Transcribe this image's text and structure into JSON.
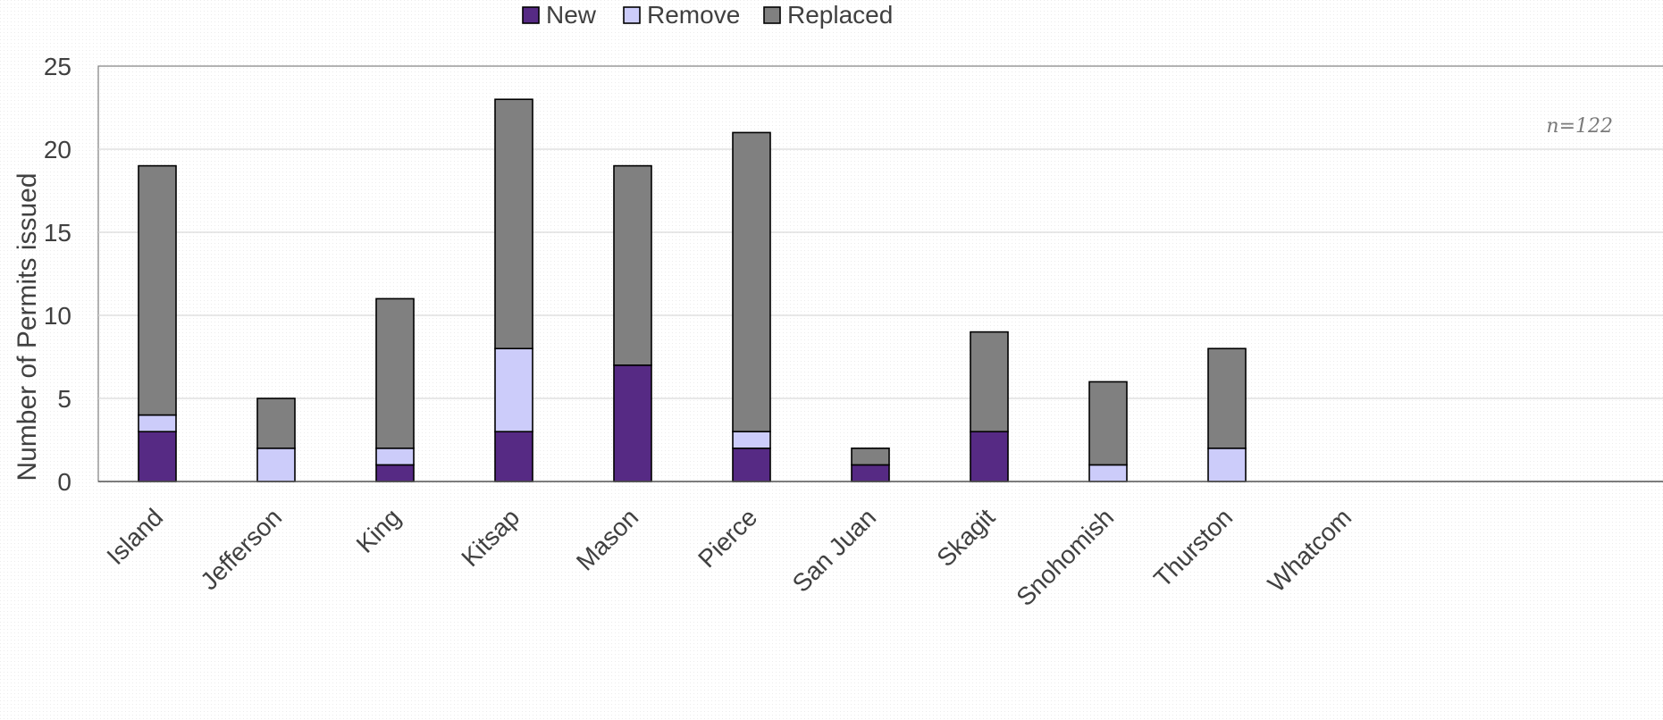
{
  "chart_data": {
    "type": "bar",
    "stacked": true,
    "categories": [
      "Island",
      "Jefferson",
      "King",
      "Kitsap",
      "Mason",
      "Pierce",
      "San Juan",
      "Skagit",
      "Snohomish",
      "Thurston",
      "Whatcom"
    ],
    "series": [
      {
        "name": "New",
        "color": "#562a84",
        "values": [
          3,
          0,
          1,
          3,
          7,
          2,
          1,
          3,
          0,
          0,
          0
        ]
      },
      {
        "name": "Remove",
        "color": "#ccccfa",
        "values": [
          1,
          2,
          1,
          5,
          0,
          1,
          0,
          0,
          1,
          2,
          0
        ]
      },
      {
        "name": "Replaced",
        "color": "#808080",
        "values": [
          15,
          3,
          9,
          15,
          12,
          18,
          1,
          6,
          5,
          6,
          0
        ]
      }
    ],
    "title": "",
    "xlabel": "",
    "ylabel": "Number of Permits issued",
    "ylim": [
      0,
      25
    ],
    "yticks": [
      0,
      5,
      10,
      15,
      20,
      25
    ],
    "grid": true,
    "legend_position": "top-center",
    "annotation": "n=122"
  }
}
